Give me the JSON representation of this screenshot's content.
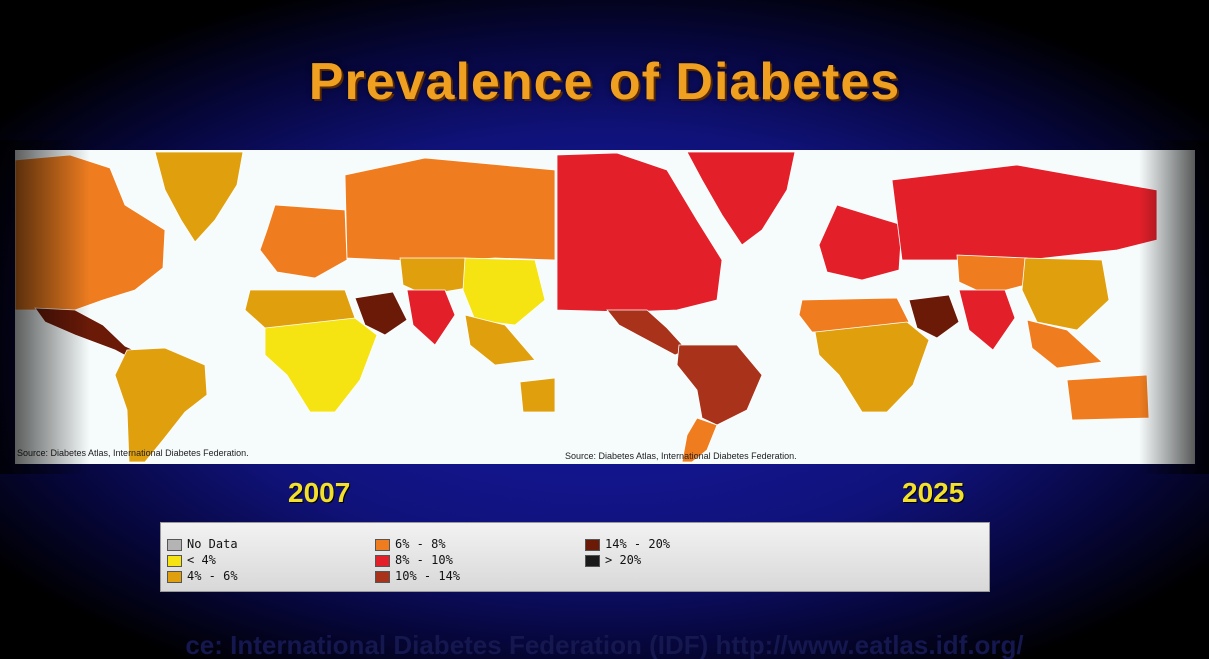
{
  "title": "Prevalence of Diabetes",
  "maps": [
    {
      "year": "2007",
      "source": "Source: Diabetes Atlas, International Diabetes Federation.",
      "region_categories": {
        "north_america": "6% - 8%",
        "greenland": "4% - 6%",
        "mexico_central_america": "14% - 20%",
        "south_america": "4% - 6%",
        "europe": "6% - 8%",
        "russia": "6% - 8%",
        "north_africa": "4% - 6%",
        "sub_saharan_africa": "< 4%",
        "middle_east": "14% - 20%",
        "south_asia": "8% - 10%",
        "central_asia": "4% - 6%",
        "china_mongolia": "< 4%",
        "southeast_asia": "4% - 6%",
        "australia": "4% - 6%"
      }
    },
    {
      "year": "2025",
      "source": "Source: Diabetes Atlas, International Diabetes Federation.",
      "region_categories": {
        "north_america": "8% - 10%",
        "greenland": "8% - 10%",
        "mexico_central_america": "10% - 14%",
        "south_america": "10% - 14%",
        "southern_cone": "6% - 8%",
        "europe": "8% - 10%",
        "russia": "8% - 10%",
        "north_africa": "6% - 8%",
        "sub_saharan_africa": "4% - 6%",
        "middle_east": "14% - 20%",
        "south_asia": "8% - 10%",
        "central_asia": "6% - 8%",
        "china_mongolia": "4% - 6%",
        "southeast_asia": "6% - 8%",
        "australia": "6% - 8%"
      }
    }
  ],
  "legend": [
    {
      "label": "No Data",
      "color": "#b4b4b4"
    },
    {
      "label": "< 4%",
      "color": "#f5e312"
    },
    {
      "label": "4% - 6%",
      "color": "#e0a00e"
    },
    {
      "label": "6% - 8%",
      "color": "#ef7d20"
    },
    {
      "label": "8% - 10%",
      "color": "#e3202a"
    },
    {
      "label": "10% - 14%",
      "color": "#a8321a"
    },
    {
      "label": "14% - 20%",
      "color": "#6b1a08"
    },
    {
      "label": "> 20%",
      "color": "#1a1a1a"
    }
  ],
  "footer": "ce: International Diabetes Federation (IDF) http://www.eatlas.idf.org/"
}
